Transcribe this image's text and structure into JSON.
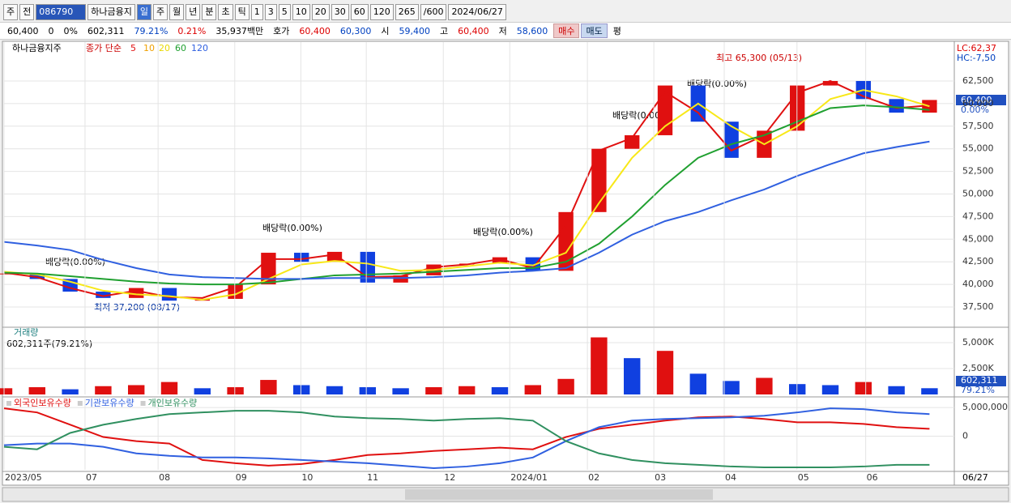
{
  "toolbar": {
    "items": [
      "주",
      "전",
      "086790",
      "하나금융지",
      "일",
      "주",
      "월",
      "년",
      "분",
      "초",
      "틱",
      "1",
      "3",
      "5",
      "10",
      "20",
      "30",
      "60",
      "120",
      "265",
      "/600",
      "2024/06/27"
    ]
  },
  "quote": {
    "items": [
      "60,400",
      "0",
      "0%",
      "602,311",
      "79.21%",
      "0.21%",
      "35,937백만",
      "호가",
      "60,400",
      "60,300",
      "시",
      "59,400",
      "고",
      "60,400",
      "저",
      "58,600",
      "매수",
      "매도",
      "평"
    ]
  },
  "chart_data": [
    {
      "type": "candle-line",
      "title": "하나금융지주",
      "subtitle": "종가 단순",
      "ma_labels": [
        "5",
        "10",
        "20",
        "60",
        "120"
      ],
      "right_labels": [
        "LC:62,37",
        "HC:-7,50"
      ],
      "last_label": "60,400",
      "last_change": "0.00%",
      "annotations": [
        "배당락(0.00%)",
        "배당락(0.00%)",
        "배당락(0.00%)",
        "배당락(0.00%)",
        "배당락(0.00%)",
        "최고 65,300 (05/13)",
        "최저 37,200 (08/17)"
      ],
      "x": [
        0,
        1,
        2,
        3,
        4,
        5,
        6,
        7,
        8,
        9,
        10,
        11,
        12,
        13,
        14,
        15,
        16,
        17,
        18,
        19,
        20,
        21,
        22,
        23,
        24,
        25,
        26,
        27,
        28
      ],
      "xlim": [
        0,
        28.75
      ],
      "ylim": [
        35350,
        66800
      ],
      "grid": true,
      "yticks": [
        {
          "value": 37500,
          "label": "37,500"
        },
        {
          "value": 40000,
          "label": "40,000"
        },
        {
          "value": 42500,
          "label": "42,500"
        },
        {
          "value": 45000,
          "label": "45,000"
        },
        {
          "value": 47500,
          "label": "47,500"
        },
        {
          "value": 50000,
          "label": "50,000"
        },
        {
          "value": 52500,
          "label": "52,500"
        },
        {
          "value": 55000,
          "label": "55,000"
        },
        {
          "value": 57500,
          "label": "57,500"
        },
        {
          "value": 60000,
          "label": "60,000"
        },
        {
          "value": 62500,
          "label": "62,500"
        }
      ],
      "close": [
        41200,
        40600,
        39200,
        38500,
        39600,
        38200,
        38400,
        40000,
        43500,
        42500,
        43600,
        40200,
        41000,
        42200,
        42300,
        43000,
        41500,
        48000,
        55000,
        56500,
        62000,
        58000,
        54000,
        57000,
        62000,
        62500,
        60500,
        59000,
        60400
      ],
      "up_color": "#e01010",
      "down_color": "#1040e0",
      "series": [
        {
          "color": "#e01010",
          "values": [
            41300,
            40800,
            39600,
            38700,
            39300,
            38600,
            38500,
            39700,
            42800,
            42800,
            43300,
            40800,
            40900,
            41900,
            42200,
            42800,
            41800,
            46500,
            54800,
            56200,
            61300,
            59000,
            54800,
            56500,
            61200,
            62500,
            60800,
            59500,
            59800
          ]
        },
        {
          "color": "#f8e818",
          "values": [
            41400,
            41100,
            40300,
            39300,
            38900,
            38700,
            38300,
            38900,
            40600,
            42200,
            42600,
            42300,
            41500,
            41600,
            42000,
            42400,
            42100,
            43500,
            49000,
            54000,
            57500,
            60000,
            57500,
            55500,
            57500,
            60500,
            61500,
            60800,
            59700
          ]
        },
        {
          "color": "#20a030",
          "values": [
            41300,
            41200,
            40900,
            40600,
            40300,
            40100,
            40000,
            40000,
            40200,
            40600,
            41000,
            41100,
            41200,
            41400,
            41600,
            41800,
            41800,
            42500,
            44500,
            47500,
            51000,
            54000,
            55500,
            56500,
            58000,
            59500,
            59800,
            59600,
            59300
          ]
        },
        {
          "color": "#3060e0",
          "values": [
            44700,
            44300,
            43800,
            42700,
            41800,
            41100,
            40800,
            40700,
            40600,
            40600,
            40700,
            40700,
            40700,
            40800,
            41000,
            41300,
            41500,
            41800,
            43500,
            45500,
            47000,
            48000,
            49300,
            50500,
            52000,
            53300,
            54500,
            55200,
            55800
          ]
        }
      ]
    },
    {
      "type": "bar",
      "title": "거래량",
      "subtitle": "602,311주(79.21%)",
      "last_label": "602,311",
      "last_ratio": "79.21%",
      "x": [
        0,
        1,
        2,
        3,
        4,
        5,
        6,
        7,
        8,
        9,
        10,
        11,
        12,
        13,
        14,
        15,
        16,
        17,
        18,
        19,
        20,
        21,
        22,
        23,
        24,
        25,
        26,
        27,
        28
      ],
      "xlim": [
        0,
        28.75
      ],
      "ylim": [
        0,
        6400000
      ],
      "yticks": [
        {
          "value": 2500000,
          "label": "2,500K"
        },
        {
          "value": 5000000,
          "label": "5,000K"
        }
      ],
      "values": [
        600000,
        700000,
        500000,
        800000,
        900000,
        1200000,
        600000,
        700000,
        1400000,
        900000,
        800000,
        700000,
        600000,
        700000,
        800000,
        700000,
        900000,
        1500000,
        5500000,
        3500000,
        4200000,
        2000000,
        1300000,
        1600000,
        1000000,
        900000,
        1200000,
        800000,
        602311
      ],
      "up_color": "#e01010",
      "down_color": "#1040e0"
    },
    {
      "type": "line",
      "x": [
        0,
        1,
        2,
        3,
        4,
        5,
        6,
        7,
        8,
        9,
        10,
        11,
        12,
        13,
        14,
        15,
        16,
        17,
        18,
        19,
        20,
        21,
        22,
        23,
        24,
        25,
        26,
        27,
        28
      ],
      "xlim": [
        0,
        28.75
      ],
      "ylim": [
        -5860000,
        6570000
      ],
      "yticks": [
        0,
        {
          "value": 5000000,
          "label": "5,000,000"
        }
      ],
      "xticks": [
        {
          "value": 0,
          "label": "2023/05"
        },
        {
          "value": 2.45,
          "label": "07"
        },
        {
          "value": 4.66,
          "label": "08"
        },
        {
          "value": 6.98,
          "label": "09"
        },
        {
          "value": 8.98,
          "label": "10"
        },
        {
          "value": 10.96,
          "label": "11"
        },
        {
          "value": 13.29,
          "label": "12"
        },
        {
          "value": 15.3,
          "label": "2024/01"
        },
        {
          "value": 17.65,
          "label": "02"
        },
        {
          "value": 19.66,
          "label": "03"
        },
        {
          "value": 21.79,
          "label": "04"
        },
        {
          "value": 23.99,
          "label": "05"
        },
        {
          "value": 26.07,
          "label": "06"
        }
      ],
      "x_end_label": "06/27",
      "series": [
        {
          "name": "외국인보유수량",
          "color": "#e01010",
          "values": [
            4857000,
            4143000,
            2000000,
            -143000,
            -857000,
            -1286000,
            -4143000,
            -4714000,
            -5143000,
            -4857000,
            -4143000,
            -3286000,
            -3000000,
            -2571000,
            -2286000,
            -2000000,
            -2286000,
            -143000,
            1286000,
            2000000,
            2714000,
            3286000,
            3429000,
            3000000,
            2429000,
            2429000,
            2143000,
            1571000,
            1286000
          ]
        },
        {
          "name": "기관보유수량",
          "color": "#3060e0",
          "values": [
            -1571000,
            -1286000,
            -1286000,
            -1857000,
            -3000000,
            -3429000,
            -3714000,
            -3714000,
            -3857000,
            -4143000,
            -4429000,
            -4714000,
            -5143000,
            -5571000,
            -5286000,
            -4714000,
            -3714000,
            -857000,
            1571000,
            2714000,
            3000000,
            3143000,
            3286000,
            3571000,
            4143000,
            4857000,
            4714000,
            4143000,
            3857000
          ]
        },
        {
          "name": "개인보유수량",
          "color": "#309060",
          "values": [
            -1857000,
            -2286000,
            571000,
            2000000,
            3000000,
            3857000,
            4143000,
            4429000,
            4429000,
            4143000,
            3429000,
            3143000,
            3000000,
            2714000,
            3000000,
            3143000,
            2714000,
            -857000,
            -3000000,
            -4143000,
            -4714000,
            -5000000,
            -5286000,
            -5429000,
            -5429000,
            -5429000,
            -5286000,
            -5000000,
            -5000000
          ]
        }
      ]
    }
  ]
}
